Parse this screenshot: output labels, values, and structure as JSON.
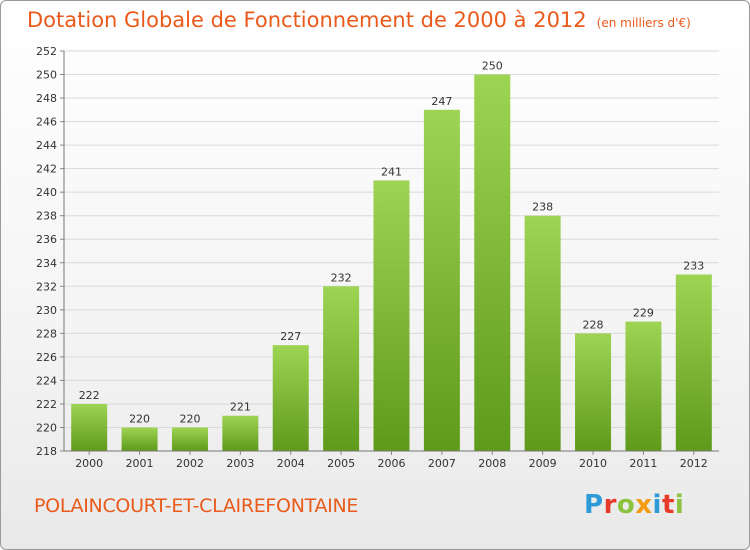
{
  "title": "Dotation Globale de Fonctionnement de 2000 à 2012",
  "subtitle": "(en milliers d'€)",
  "commune": "POLAINCOURT-ET-CLAIREFONTAINE",
  "logo": {
    "letters": [
      "P",
      "r",
      "o",
      "x",
      "i",
      "t",
      "i"
    ],
    "colors": [
      "#2e9bd6",
      "#e63a2b",
      "#8cc33e",
      "#f39c12",
      "#2e9bd6",
      "#e63a2b",
      "#8cc33e"
    ]
  },
  "colors": {
    "bar_top": "#9ed454",
    "bar_bottom": "#5f9a1a",
    "title": "#ea5a1b",
    "grid": "#d9d9d9"
  },
  "chart_data": {
    "type": "bar",
    "categories": [
      "2000",
      "2001",
      "2002",
      "2003",
      "2004",
      "2005",
      "2006",
      "2007",
      "2008",
      "2009",
      "2010",
      "2011",
      "2012"
    ],
    "values": [
      222,
      220,
      220,
      221,
      227,
      232,
      241,
      247,
      250,
      238,
      228,
      229,
      233
    ],
    "ylim": [
      218,
      252
    ],
    "yticks": [
      218,
      220,
      222,
      224,
      226,
      228,
      230,
      232,
      234,
      236,
      238,
      240,
      242,
      244,
      246,
      248,
      250,
      252
    ],
    "grid": true,
    "data_labels": true
  }
}
